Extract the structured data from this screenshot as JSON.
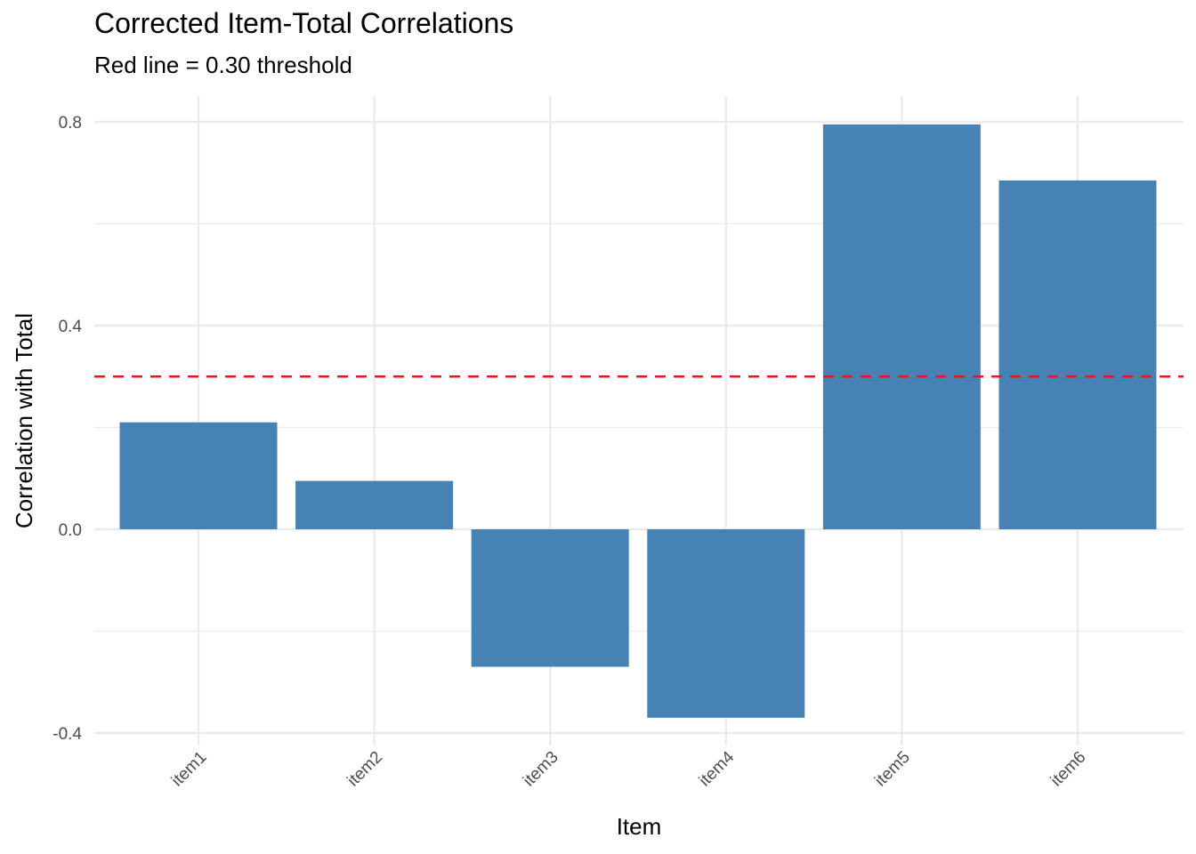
{
  "chart_data": {
    "type": "bar",
    "title": "Corrected Item-Total Correlations",
    "subtitle": "Red line = 0.30 threshold",
    "xlabel": "Item",
    "ylabel": "Correlation with Total",
    "categories": [
      "item1",
      "item2",
      "item3",
      "item4",
      "item5",
      "item6"
    ],
    "values": [
      0.21,
      0.095,
      -0.27,
      -0.37,
      0.795,
      0.685
    ],
    "ylim": [
      -0.4,
      0.8
    ],
    "y_ticks": [
      -0.4,
      0.0,
      0.4,
      0.8
    ],
    "y_tick_labels": [
      "-0.4",
      "0.0",
      "0.4",
      "0.8"
    ],
    "threshold": 0.3,
    "bar_color": "#4682B4",
    "threshold_color": "#E41A1C",
    "grid": true,
    "legend": "none"
  }
}
